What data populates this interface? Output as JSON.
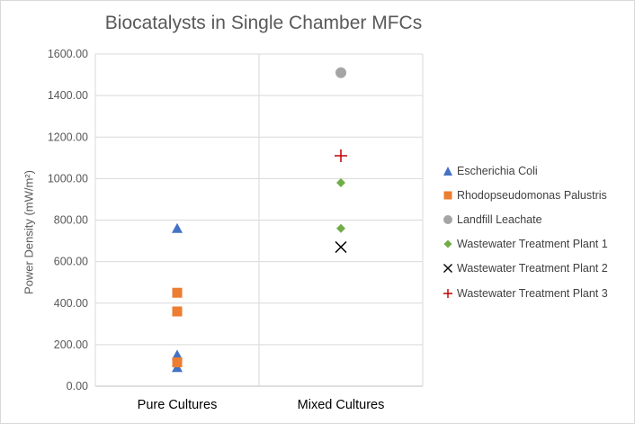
{
  "chart_data": {
    "type": "scatter",
    "title": "Biocatalysts in Single Chamber MFCs",
    "xlabel": "",
    "ylabel": "Power Density (mW/m²)",
    "categories": [
      "Pure Cultures",
      "Mixed Cultures"
    ],
    "ylim": [
      0,
      1600
    ],
    "yticks": [
      "0.00",
      "200.00",
      "400.00",
      "600.00",
      "800.00",
      "1000.00",
      "1200.00",
      "1400.00",
      "1600.00"
    ],
    "grid": true,
    "legend_position": "right",
    "series": [
      {
        "name": "Escherichia Coli",
        "marker": "triangle",
        "color": "#4472C4",
        "points": [
          {
            "category": "Pure Cultures",
            "y": 760
          },
          {
            "category": "Pure Cultures",
            "y": 150
          },
          {
            "category": "Pure Cultures",
            "y": 90
          }
        ]
      },
      {
        "name": "Rhodopseudomonas Palustris",
        "marker": "square",
        "color": "#ED7D31",
        "points": [
          {
            "category": "Pure Cultures",
            "y": 450
          },
          {
            "category": "Pure Cultures",
            "y": 360
          },
          {
            "category": "Pure Cultures",
            "y": 115
          }
        ]
      },
      {
        "name": "Landfill Leachate",
        "marker": "circle",
        "color": "#A5A5A5",
        "points": [
          {
            "category": "Mixed Cultures",
            "y": 1510
          }
        ]
      },
      {
        "name": "Wastewater Treatment Plant 1",
        "marker": "diamond",
        "color": "#70AD47",
        "points": [
          {
            "category": "Mixed Cultures",
            "y": 980
          },
          {
            "category": "Mixed Cultures",
            "y": 760
          }
        ]
      },
      {
        "name": "Wastewater Treatment Plant 2",
        "marker": "x",
        "color": "#000000",
        "points": [
          {
            "category": "Mixed Cultures",
            "y": 670
          }
        ]
      },
      {
        "name": "Wastewater Treatment Plant 3",
        "marker": "plus",
        "color": "#C00000",
        "points": [
          {
            "category": "Mixed Cultures",
            "y": 1110
          }
        ]
      }
    ]
  }
}
